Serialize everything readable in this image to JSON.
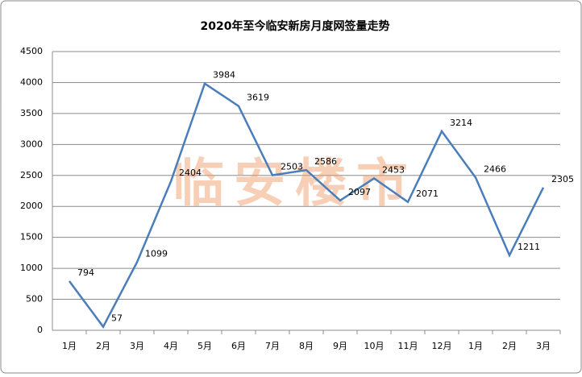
{
  "chart_data": {
    "type": "line",
    "title": "2020年至今临安新房月度网签量走势",
    "watermark": "临安楼市",
    "categories": [
      "1月",
      "2月",
      "3月",
      "4月",
      "5月",
      "6月",
      "7月",
      "8月",
      "9月",
      "10月",
      "11月",
      "12月",
      "1月",
      "2月",
      "3月"
    ],
    "series": [
      {
        "name": "网签量",
        "color": "#4a7ebb",
        "values": [
          794,
          57,
          1099,
          2404,
          3984,
          3619,
          2503,
          2586,
          2097,
          2453,
          2071,
          3214,
          2466,
          1211,
          2305
        ]
      }
    ],
    "ylim": [
      0,
      4500
    ],
    "yticks": [
      0,
      500,
      1000,
      1500,
      2000,
      2500,
      3000,
      3500,
      4000,
      4500
    ],
    "grid": true
  }
}
